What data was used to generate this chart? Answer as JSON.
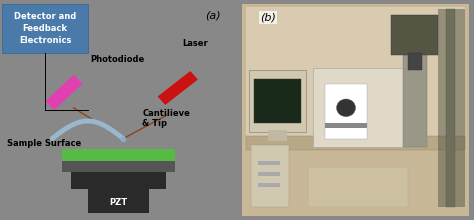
{
  "fig_width": 4.74,
  "fig_height": 2.2,
  "dpi": 100,
  "panel_a_bg": "#f5f0dc",
  "panel_b_bg": "#c8b89a",
  "border_color": "#555555",
  "label_a": "(a)",
  "label_b": "(b)",
  "label_fontsize": 8,
  "detector_box_color": "#4a7aaa",
  "detector_text": "Detector and\nFeedback\nElectronics",
  "detector_text_color": "white",
  "photodiode_label": "Photodiode",
  "laser_label": "Laser",
  "cantilever_label": "Cantilieve\n& Tip",
  "sample_label": "Sample Surface",
  "pzt_label": "PZT",
  "photodiode_color": "#e040b0",
  "laser_color": "#cc1111",
  "beam_color": "#8B4513",
  "surface_color": "#55bb44",
  "pzt_color": "#2a2a2a",
  "cantilever_color": "#9ab8cc",
  "text_fontsize": 6.0,
  "line_width": 1.0
}
